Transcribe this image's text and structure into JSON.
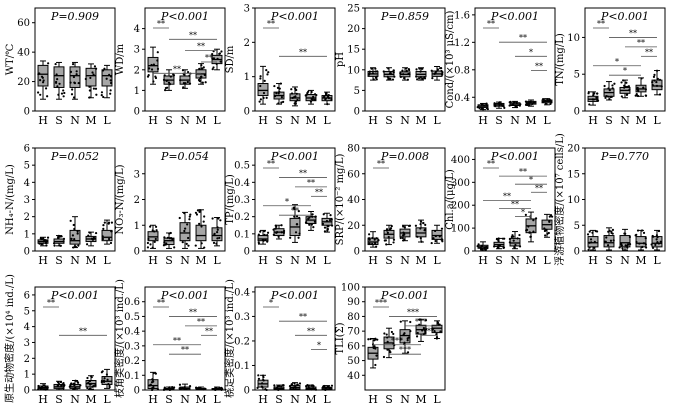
{
  "categories": [
    "H",
    "S",
    "N",
    "M",
    "L"
  ],
  "colors": {
    "box_fill": "#a6a6a6",
    "point": "#000000",
    "line": "#000000"
  },
  "chart_data": [
    {
      "type": "box",
      "ylabel": "WT/℃",
      "p_text": "P=0.909",
      "ylim": [
        0,
        70
      ],
      "yticks": [
        "0",
        "20",
        "40",
        "60"
      ],
      "boxes": [
        {
          "min": 8,
          "q1": 17,
          "median": 25,
          "q3": 31,
          "max": 34
        },
        {
          "min": 8,
          "q1": 16,
          "median": 24,
          "q3": 30,
          "max": 33
        },
        {
          "min": 8,
          "q1": 16,
          "median": 24,
          "q3": 30,
          "max": 33
        },
        {
          "min": 9,
          "q1": 17,
          "median": 24,
          "q3": 29,
          "max": 32
        },
        {
          "min": 9,
          "q1": 17,
          "median": 24,
          "q3": 28,
          "max": 31
        }
      ],
      "sig": []
    },
    {
      "type": "box",
      "ylabel": "WD/m",
      "p_text": "P<0.001",
      "ylim": [
        0,
        5
      ],
      "yticks": [
        "0",
        "1",
        "2",
        "3",
        "4"
      ],
      "boxes": [
        {
          "min": 1.3,
          "q1": 1.9,
          "median": 2.2,
          "q3": 2.6,
          "max": 3.1
        },
        {
          "min": 1.0,
          "q1": 1.3,
          "median": 1.5,
          "q3": 1.7,
          "max": 2.0
        },
        {
          "min": 1.1,
          "q1": 1.3,
          "median": 1.5,
          "q3": 1.7,
          "max": 2.0
        },
        {
          "min": 1.3,
          "q1": 1.6,
          "median": 1.8,
          "q3": 2.0,
          "max": 2.3
        },
        {
          "min": 2.0,
          "q1": 2.3,
          "median": 2.5,
          "q3": 2.7,
          "max": 3.0
        }
      ],
      "sig": [
        "**",
        "**",
        "**",
        "**",
        "**"
      ]
    },
    {
      "type": "box",
      "ylabel": "SD/m",
      "p_text": "P<0.001",
      "ylim": [
        0,
        3
      ],
      "yticks": [
        "0",
        "1",
        "2",
        "3"
      ],
      "boxes": [
        {
          "min": 0.2,
          "q1": 0.45,
          "median": 0.6,
          "q3": 0.8,
          "max": 1.3
        },
        {
          "min": 0.2,
          "q1": 0.35,
          "median": 0.45,
          "q3": 0.55,
          "max": 0.8
        },
        {
          "min": 0.15,
          "q1": 0.3,
          "median": 0.38,
          "q3": 0.5,
          "max": 0.7
        },
        {
          "min": 0.2,
          "q1": 0.3,
          "median": 0.38,
          "q3": 0.48,
          "max": 0.6
        },
        {
          "min": 0.2,
          "q1": 0.3,
          "median": 0.38,
          "q3": 0.45,
          "max": 0.55
        }
      ],
      "sig": [
        "**",
        "**"
      ]
    },
    {
      "type": "box",
      "ylabel": "pH",
      "p_text": "P=0.859",
      "ylim": [
        0,
        25
      ],
      "yticks": [
        "0",
        "5",
        "10",
        "15",
        "20",
        "25"
      ],
      "boxes": [
        {
          "min": 7.5,
          "q1": 8.4,
          "median": 9.0,
          "q3": 9.6,
          "max": 10.5
        },
        {
          "min": 7.5,
          "q1": 8.3,
          "median": 8.9,
          "q3": 9.6,
          "max": 10.5
        },
        {
          "min": 7.5,
          "q1": 8.3,
          "median": 8.9,
          "q3": 9.5,
          "max": 10.5
        },
        {
          "min": 7.5,
          "q1": 8.3,
          "median": 8.9,
          "q3": 9.6,
          "max": 10.5
        },
        {
          "min": 7.5,
          "q1": 8.4,
          "median": 9.0,
          "q3": 9.7,
          "max": 10.8
        }
      ],
      "sig": []
    },
    {
      "type": "box",
      "ylabel": "Cond/(×10³ μS/cm)",
      "p_text": "P<0.001",
      "ylim": [
        0.2,
        1.7
      ],
      "yticks": [
        "0.4",
        "0.8",
        "1.2",
        "1.6"
      ],
      "boxes": [
        {
          "min": 0.22,
          "q1": 0.25,
          "median": 0.27,
          "q3": 0.29,
          "max": 0.31
        },
        {
          "min": 0.24,
          "q1": 0.27,
          "median": 0.29,
          "q3": 0.31,
          "max": 0.33
        },
        {
          "min": 0.25,
          "q1": 0.28,
          "median": 0.3,
          "q3": 0.32,
          "max": 0.34
        },
        {
          "min": 0.27,
          "q1": 0.3,
          "median": 0.32,
          "q3": 0.34,
          "max": 0.36
        },
        {
          "min": 0.29,
          "q1": 0.32,
          "median": 0.34,
          "q3": 0.36,
          "max": 0.38
        }
      ],
      "sig": [
        "**",
        "**",
        "*",
        "**"
      ]
    },
    {
      "type": "box",
      "ylabel": "TN/(mg/L)",
      "p_text": "P<0.001",
      "ylim": [
        0,
        14
      ],
      "yticks": [
        "0",
        "5",
        "10"
      ],
      "boxes": [
        {
          "min": 0.8,
          "q1": 1.3,
          "median": 1.6,
          "q3": 2.0,
          "max": 2.6
        },
        {
          "min": 1.5,
          "q1": 2.0,
          "median": 2.5,
          "q3": 3.0,
          "max": 4.0
        },
        {
          "min": 1.8,
          "q1": 2.4,
          "median": 2.8,
          "q3": 3.2,
          "max": 4.2
        },
        {
          "min": 2.0,
          "q1": 2.6,
          "median": 3.0,
          "q3": 3.5,
          "max": 4.5
        },
        {
          "min": 2.2,
          "q1": 2.9,
          "median": 3.4,
          "q3": 4.2,
          "max": 5.5
        }
      ],
      "sig": [
        "**",
        "**",
        "**",
        "**",
        "*",
        "*"
      ]
    },
    {
      "type": "box",
      "ylabel": "NH₄-N/(mg/L)",
      "p_text": "P=0.052",
      "ylim": [
        0,
        6
      ],
      "yticks": [
        "0",
        "1",
        "2",
        "3",
        "4",
        "5",
        "6"
      ],
      "boxes": [
        {
          "min": 0.3,
          "q1": 0.45,
          "median": 0.55,
          "q3": 0.65,
          "max": 0.8
        },
        {
          "min": 0.3,
          "q1": 0.45,
          "median": 0.55,
          "q3": 0.7,
          "max": 0.9
        },
        {
          "min": 0.2,
          "q1": 0.4,
          "median": 0.6,
          "q3": 1.2,
          "max": 2.0
        },
        {
          "min": 0.3,
          "q1": 0.55,
          "median": 0.7,
          "q3": 0.85,
          "max": 1.1
        },
        {
          "min": 0.4,
          "q1": 0.6,
          "median": 0.8,
          "q3": 1.2,
          "max": 1.8
        }
      ],
      "sig": []
    },
    {
      "type": "box",
      "ylabel": "NO₃-N/(mg/L)",
      "p_text": "P=0.054",
      "ylim": [
        0,
        4
      ],
      "yticks": [
        "0",
        "1",
        "2",
        "3"
      ],
      "boxes": [
        {
          "min": 0.1,
          "q1": 0.4,
          "median": 0.55,
          "q3": 0.75,
          "max": 1.0
        },
        {
          "min": 0.1,
          "q1": 0.25,
          "median": 0.4,
          "q3": 0.5,
          "max": 0.7
        },
        {
          "min": 0.1,
          "q1": 0.4,
          "median": 0.7,
          "q3": 1.1,
          "max": 1.5
        },
        {
          "min": 0.1,
          "q1": 0.4,
          "median": 0.6,
          "q3": 1.0,
          "max": 1.6
        },
        {
          "min": 0.2,
          "q1": 0.4,
          "median": 0.6,
          "q3": 0.9,
          "max": 1.3
        }
      ],
      "sig": []
    },
    {
      "type": "box",
      "ylabel": "TP/(mg/L)",
      "p_text": "P<0.001",
      "ylim": [
        0,
        0.6
      ],
      "yticks": [
        "0",
        "0.1",
        "0.2",
        "0.3",
        "0.4",
        "0.5"
      ],
      "boxes": [
        {
          "min": 0.04,
          "q1": 0.06,
          "median": 0.07,
          "q3": 0.09,
          "max": 0.12
        },
        {
          "min": 0.07,
          "q1": 0.09,
          "median": 0.11,
          "q3": 0.13,
          "max": 0.15
        },
        {
          "min": 0.05,
          "q1": 0.09,
          "median": 0.14,
          "q3": 0.19,
          "max": 0.27
        },
        {
          "min": 0.12,
          "q1": 0.16,
          "median": 0.18,
          "q3": 0.2,
          "max": 0.23
        },
        {
          "min": 0.11,
          "q1": 0.15,
          "median": 0.17,
          "q3": 0.19,
          "max": 0.22
        }
      ],
      "sig": [
        "**",
        "**",
        "**",
        "**",
        "*",
        "**"
      ]
    },
    {
      "type": "box",
      "ylabel": "SRP/(×10⁻² mg/L)",
      "p_text": "P=0.008",
      "ylim": [
        0,
        80
      ],
      "yticks": [
        "0",
        "20",
        "40",
        "60",
        "80"
      ],
      "boxes": [
        {
          "min": 3,
          "q1": 5,
          "median": 7,
          "q3": 10,
          "max": 15
        },
        {
          "min": 5,
          "q1": 10,
          "median": 13,
          "q3": 16,
          "max": 20
        },
        {
          "min": 8,
          "q1": 11,
          "median": 14,
          "q3": 17,
          "max": 20
        },
        {
          "min": 7,
          "q1": 11,
          "median": 14,
          "q3": 18,
          "max": 24
        },
        {
          "min": 6,
          "q1": 9,
          "median": 12,
          "q3": 16,
          "max": 20
        }
      ],
      "sig": [
        "**"
      ]
    },
    {
      "type": "box",
      "ylabel": "Chl.a/(μg/L)",
      "p_text": "P<0.001",
      "ylim": [
        0,
        450
      ],
      "yticks": [
        "0",
        "100",
        "200",
        "300",
        "400"
      ],
      "boxes": [
        {
          "min": 5,
          "q1": 12,
          "median": 18,
          "q3": 25,
          "max": 40
        },
        {
          "min": 10,
          "q1": 20,
          "median": 28,
          "q3": 38,
          "max": 55
        },
        {
          "min": 10,
          "q1": 22,
          "median": 35,
          "q3": 55,
          "max": 85
        },
        {
          "min": 40,
          "q1": 80,
          "median": 110,
          "q3": 140,
          "max": 170
        },
        {
          "min": 60,
          "q1": 95,
          "median": 115,
          "q3": 135,
          "max": 160
        }
      ],
      "sig": [
        "**",
        "**",
        "*",
        "**",
        "**",
        "**",
        "*"
      ]
    },
    {
      "type": "box",
      "ylabel": "浮游植物密度/(×10⁷ cells/L)",
      "p_text": "P=0.770",
      "ylim": [
        0,
        20
      ],
      "yticks": [
        "0",
        "5",
        "10",
        "15",
        "20"
      ],
      "boxes": [
        {
          "min": 0.2,
          "q1": 0.8,
          "median": 1.6,
          "q3": 2.8,
          "max": 4.0
        },
        {
          "min": 0.2,
          "q1": 0.8,
          "median": 1.6,
          "q3": 3.0,
          "max": 4.5
        },
        {
          "min": 0.2,
          "q1": 0.8,
          "median": 1.6,
          "q3": 3.0,
          "max": 4.2
        },
        {
          "min": 0.2,
          "q1": 0.8,
          "median": 1.5,
          "q3": 2.8,
          "max": 4.0
        },
        {
          "min": 0.2,
          "q1": 0.8,
          "median": 1.5,
          "q3": 2.8,
          "max": 4.0
        }
      ],
      "sig": []
    },
    {
      "type": "box",
      "ylabel": "原生动物密度/(×10⁴ ind./L)",
      "p_text": "P<0.001",
      "ylim": [
        0,
        6.5
      ],
      "yticks": [
        "0",
        "1",
        "2",
        "3",
        "4",
        "5",
        "6"
      ],
      "boxes": [
        {
          "min": 0.02,
          "q1": 0.08,
          "median": 0.15,
          "q3": 0.25,
          "max": 0.4
        },
        {
          "min": 0.02,
          "q1": 0.1,
          "median": 0.2,
          "q3": 0.35,
          "max": 0.55
        },
        {
          "min": 0.02,
          "q1": 0.1,
          "median": 0.2,
          "q3": 0.35,
          "max": 0.6
        },
        {
          "min": 0.05,
          "q1": 0.2,
          "median": 0.4,
          "q3": 0.6,
          "max": 0.9
        },
        {
          "min": 0.1,
          "q1": 0.35,
          "median": 0.55,
          "q3": 0.85,
          "max": 1.3
        }
      ],
      "sig": [
        "**",
        "**"
      ]
    },
    {
      "type": "box",
      "ylabel": "枝角类密度/(×10³ ind./L)",
      "p_text": "P<0.001",
      "ylim": [
        0,
        0.7
      ],
      "yticks": [
        "0",
        "0.1",
        "0.2",
        "0.3",
        "0.4",
        "0.5",
        "0.6"
      ],
      "boxes": [
        {
          "min": 0.0,
          "q1": 0.01,
          "median": 0.03,
          "q3": 0.07,
          "max": 0.12
        },
        {
          "min": 0.0,
          "q1": 0.0,
          "median": 0.005,
          "q3": 0.01,
          "max": 0.02
        },
        {
          "min": 0.0,
          "q1": 0.002,
          "median": 0.01,
          "q3": 0.02,
          "max": 0.04
        },
        {
          "min": 0.0,
          "q1": 0.0,
          "median": 0.004,
          "q3": 0.01,
          "max": 0.02
        },
        {
          "min": 0.0,
          "q1": 0.0,
          "median": 0.004,
          "q3": 0.01,
          "max": 0.02
        }
      ],
      "sig": [
        "**",
        "**",
        "**",
        "**",
        "**",
        "**"
      ]
    },
    {
      "type": "box",
      "ylabel": "桡足类密度/(×10³ ind./L)",
      "p_text": "P<0.001",
      "ylim": [
        0,
        0.42
      ],
      "yticks": [
        "0",
        "0.1",
        "0.2",
        "0.3",
        "0.4"
      ],
      "boxes": [
        {
          "min": 0.0,
          "q1": 0.012,
          "median": 0.025,
          "q3": 0.04,
          "max": 0.06
        },
        {
          "min": 0.0,
          "q1": 0.002,
          "median": 0.006,
          "q3": 0.012,
          "max": 0.02
        },
        {
          "min": 0.0,
          "q1": 0.004,
          "median": 0.01,
          "q3": 0.018,
          "max": 0.03
        },
        {
          "min": 0.0,
          "q1": 0.002,
          "median": 0.006,
          "q3": 0.012,
          "max": 0.02
        },
        {
          "min": 0.0,
          "q1": 0.002,
          "median": 0.005,
          "q3": 0.01,
          "max": 0.018
        }
      ],
      "sig": [
        "*",
        "**",
        "**",
        "*"
      ]
    },
    {
      "type": "box",
      "ylabel": "TLI(Σ)",
      "p_text": "P<0.001",
      "ylim": [
        30,
        100
      ],
      "yticks": [
        "40",
        "50",
        "60",
        "70",
        "80",
        "90",
        "100"
      ],
      "boxes": [
        {
          "min": 45,
          "q1": 51,
          "median": 55,
          "q3": 59,
          "max": 65
        },
        {
          "min": 52,
          "q1": 58,
          "median": 62,
          "q3": 66,
          "max": 72
        },
        {
          "min": 55,
          "q1": 62,
          "median": 67,
          "q3": 71,
          "max": 77
        },
        {
          "min": 63,
          "q1": 68,
          "median": 71,
          "q3": 74,
          "max": 78
        },
        {
          "min": 65,
          "q1": 69,
          "median": 72,
          "q3": 74,
          "max": 77
        }
      ],
      "sig": [
        "***",
        "***",
        "***",
        "***",
        "***",
        "***"
      ]
    }
  ]
}
